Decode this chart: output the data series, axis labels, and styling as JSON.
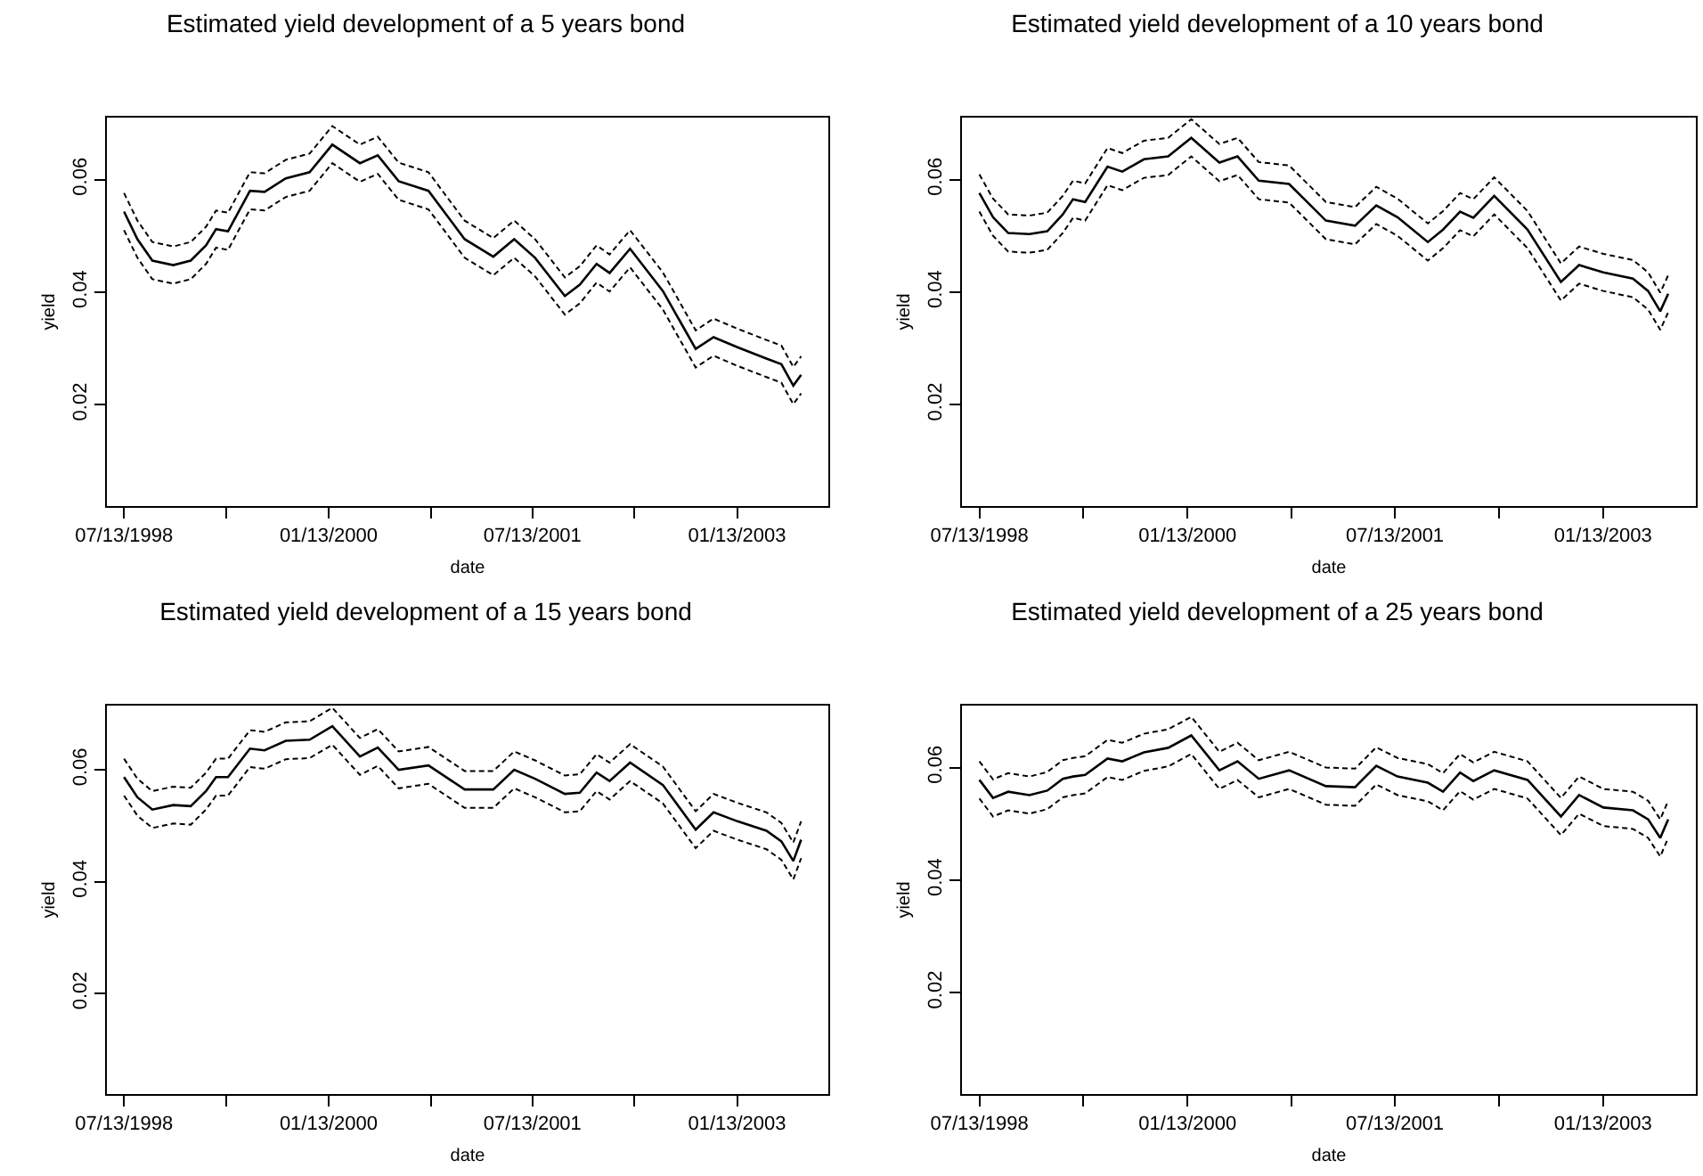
{
  "chart_data": [
    {
      "type": "line",
      "title": "Estimated yield development of a 5 years bond",
      "xlabel": "date",
      "ylabel": "yield",
      "grid": false,
      "marker": "none",
      "x": [
        "1998-07-13",
        "1998-08-18",
        "1998-09-27",
        "1998-11-22",
        "1999-01-08",
        "1999-02-18",
        "1999-03-17",
        "1999-04-18",
        "1999-06-16",
        "1999-07-25",
        "1999-09-20",
        "1999-11-23",
        "2000-01-23",
        "2000-04-06",
        "2000-05-24",
        "2000-07-19",
        "2000-10-07",
        "2001-01-12",
        "2001-03-30",
        "2001-05-25",
        "2001-07-20",
        "2001-10-08",
        "2001-11-17",
        "2002-01-01",
        "2002-02-05",
        "2002-04-01",
        "2002-06-28",
        "2002-09-24",
        "2002-11-11",
        "2003-01-14",
        "2003-04-02",
        "2003-05-12",
        "2003-06-13",
        "2003-07-04"
      ],
      "xlim": [
        "1998-05-28",
        "2003-09-15"
      ],
      "ylim": [
        0.002,
        0.071
      ],
      "yticks": [
        0.02,
        0.04,
        0.06
      ],
      "xticks": [
        {
          "value": "1998-07-13",
          "label": "07/13/1998"
        },
        {
          "value": "1999-04-13",
          "label": null
        },
        {
          "value": "2000-01-13",
          "label": "01/13/2000"
        },
        {
          "value": "2000-10-13",
          "label": null
        },
        {
          "value": "2001-07-13",
          "label": "07/13/2001"
        },
        {
          "value": "2002-04-13",
          "label": null
        },
        {
          "value": "2003-01-13",
          "label": "01/13/2003"
        }
      ],
      "series": [
        {
          "color": "#000000",
          "line_style": "solid",
          "values": [
            0.0543,
            0.0494,
            0.0456,
            0.0448,
            0.0456,
            0.0483,
            0.0512,
            0.0508,
            0.058,
            0.0578,
            0.0602,
            0.0613,
            0.0662,
            0.0629,
            0.0643,
            0.0597,
            0.058,
            0.0494,
            0.0463,
            0.0494,
            0.0461,
            0.0393,
            0.0413,
            0.045,
            0.0434,
            0.0477,
            0.0402,
            0.0299,
            0.032,
            0.0302,
            0.0282,
            0.0272,
            0.0234,
            0.0253
          ]
        },
        {
          "color": "#000000",
          "line_style": "dashed",
          "values": [
            0.0576,
            0.0527,
            0.0489,
            0.0481,
            0.0489,
            0.0516,
            0.0545,
            0.0541,
            0.0613,
            0.0611,
            0.0635,
            0.0646,
            0.0695,
            0.0662,
            0.0676,
            0.063,
            0.0613,
            0.0527,
            0.0496,
            0.0527,
            0.0494,
            0.0426,
            0.0446,
            0.0483,
            0.0467,
            0.051,
            0.0435,
            0.0332,
            0.0353,
            0.0335,
            0.0315,
            0.0305,
            0.0267,
            0.0286
          ]
        },
        {
          "color": "#000000",
          "line_style": "dashed",
          "values": [
            0.051,
            0.0461,
            0.0423,
            0.0415,
            0.0423,
            0.045,
            0.0479,
            0.0475,
            0.0547,
            0.0545,
            0.0569,
            0.058,
            0.0629,
            0.0596,
            0.061,
            0.0564,
            0.0547,
            0.0461,
            0.043,
            0.0461,
            0.0428,
            0.036,
            0.038,
            0.0417,
            0.0401,
            0.0444,
            0.0369,
            0.0266,
            0.0287,
            0.0269,
            0.0249,
            0.0239,
            0.0201,
            0.022
          ]
        }
      ]
    },
    {
      "type": "line",
      "title": "Estimated yield development of a 10 years bond",
      "xlabel": "date",
      "ylabel": "yield",
      "grid": false,
      "marker": "none",
      "x": [
        "1998-07-13",
        "1998-08-18",
        "1998-09-27",
        "1998-11-22",
        "1999-01-08",
        "1999-02-18",
        "1999-03-17",
        "1999-04-18",
        "1999-06-16",
        "1999-07-25",
        "1999-09-20",
        "1999-11-23",
        "2000-01-23",
        "2000-04-06",
        "2000-05-24",
        "2000-07-19",
        "2000-10-07",
        "2001-01-12",
        "2001-03-30",
        "2001-05-25",
        "2001-07-20",
        "2001-10-08",
        "2001-11-17",
        "2002-01-01",
        "2002-02-05",
        "2002-04-01",
        "2002-06-28",
        "2002-09-24",
        "2002-11-11",
        "2003-01-14",
        "2003-04-02",
        "2003-05-12",
        "2003-06-13",
        "2003-07-04"
      ],
      "xlim": [
        "1998-05-28",
        "2003-09-15"
      ],
      "ylim": [
        0.002,
        0.071
      ],
      "yticks": [
        0.02,
        0.04,
        0.06
      ],
      "xticks": [
        {
          "value": "1998-07-13",
          "label": "07/13/1998"
        },
        {
          "value": "1999-04-13",
          "label": null
        },
        {
          "value": "2000-01-13",
          "label": "01/13/2000"
        },
        {
          "value": "2000-10-13",
          "label": null
        },
        {
          "value": "2001-07-13",
          "label": "07/13/2001"
        },
        {
          "value": "2002-04-13",
          "label": null
        },
        {
          "value": "2003-01-13",
          "label": "01/13/2003"
        }
      ],
      "series": [
        {
          "color": "#000000",
          "line_style": "solid",
          "values": [
            0.0576,
            0.0533,
            0.0505,
            0.0503,
            0.0508,
            0.0538,
            0.0565,
            0.056,
            0.0623,
            0.0614,
            0.0636,
            0.0641,
            0.0674,
            0.063,
            0.0641,
            0.0598,
            0.0592,
            0.0527,
            0.0518,
            0.0554,
            0.0533,
            0.0489,
            0.0511,
            0.0543,
            0.0532,
            0.0571,
            0.0511,
            0.0418,
            0.0448,
            0.0435,
            0.0424,
            0.0402,
            0.0366,
            0.0397
          ]
        },
        {
          "color": "#000000",
          "line_style": "dashed",
          "values": [
            0.0609,
            0.0566,
            0.0538,
            0.0536,
            0.0541,
            0.0571,
            0.0598,
            0.0593,
            0.0656,
            0.0647,
            0.0669,
            0.0674,
            0.0707,
            0.0663,
            0.0674,
            0.0631,
            0.0625,
            0.056,
            0.0551,
            0.0587,
            0.0566,
            0.0522,
            0.0544,
            0.0576,
            0.0565,
            0.0604,
            0.0544,
            0.0451,
            0.0481,
            0.0468,
            0.0457,
            0.0435,
            0.0399,
            0.043
          ]
        },
        {
          "color": "#000000",
          "line_style": "dashed",
          "values": [
            0.0543,
            0.05,
            0.0472,
            0.047,
            0.0475,
            0.0505,
            0.0532,
            0.0527,
            0.059,
            0.0581,
            0.0603,
            0.0608,
            0.0641,
            0.0597,
            0.0608,
            0.0565,
            0.0559,
            0.0494,
            0.0485,
            0.0521,
            0.05,
            0.0456,
            0.0478,
            0.051,
            0.0499,
            0.0538,
            0.0478,
            0.0385,
            0.0415,
            0.0402,
            0.0391,
            0.0369,
            0.0333,
            0.0364
          ]
        }
      ]
    },
    {
      "type": "line",
      "title": "Estimated yield development of a 15 years bond",
      "xlabel": "date",
      "ylabel": "yield",
      "grid": false,
      "marker": "none",
      "x": [
        "1998-07-13",
        "1998-08-18",
        "1998-09-27",
        "1998-11-22",
        "1999-01-08",
        "1999-02-18",
        "1999-03-17",
        "1999-04-18",
        "1999-06-16",
        "1999-07-25",
        "1999-09-20",
        "1999-11-23",
        "2000-01-23",
        "2000-04-06",
        "2000-05-24",
        "2000-07-19",
        "2000-10-07",
        "2001-01-12",
        "2001-03-30",
        "2001-05-25",
        "2001-07-20",
        "2001-10-08",
        "2001-11-17",
        "2002-01-01",
        "2002-02-05",
        "2002-04-01",
        "2002-06-28",
        "2002-09-24",
        "2002-11-11",
        "2003-01-14",
        "2003-04-02",
        "2003-05-12",
        "2003-06-13",
        "2003-07-04"
      ],
      "xlim": [
        "1998-05-28",
        "2003-09-15"
      ],
      "ylim": [
        0.002,
        0.0715
      ],
      "yticks": [
        0.02,
        0.04,
        0.06
      ],
      "xticks": [
        {
          "value": "1998-07-13",
          "label": "07/13/1998"
        },
        {
          "value": "1999-04-13",
          "label": null
        },
        {
          "value": "2000-01-13",
          "label": "01/13/2000"
        },
        {
          "value": "2000-10-13",
          "label": null
        },
        {
          "value": "2001-07-13",
          "label": "07/13/2001"
        },
        {
          "value": "2002-04-13",
          "label": null
        },
        {
          "value": "2003-01-13",
          "label": "01/13/2003"
        }
      ],
      "series": [
        {
          "color": "#000000",
          "line_style": "solid",
          "values": [
            0.0587,
            0.0551,
            0.0529,
            0.0537,
            0.0535,
            0.0562,
            0.0587,
            0.0587,
            0.0638,
            0.0635,
            0.0652,
            0.0654,
            0.0678,
            0.0624,
            0.064,
            0.06,
            0.0608,
            0.0565,
            0.0565,
            0.06,
            0.0584,
            0.0557,
            0.0559,
            0.0595,
            0.058,
            0.0613,
            0.0573,
            0.0493,
            0.0524,
            0.0508,
            0.0491,
            0.0472,
            0.0437,
            0.0475
          ]
        },
        {
          "color": "#000000",
          "line_style": "dashed",
          "values": [
            0.062,
            0.0584,
            0.0562,
            0.057,
            0.0568,
            0.0595,
            0.062,
            0.062,
            0.0671,
            0.0668,
            0.0685,
            0.0687,
            0.0711,
            0.0657,
            0.0673,
            0.0633,
            0.0641,
            0.0598,
            0.0598,
            0.0633,
            0.0617,
            0.059,
            0.0592,
            0.0628,
            0.0613,
            0.0646,
            0.0606,
            0.0526,
            0.0557,
            0.0541,
            0.0524,
            0.0505,
            0.047,
            0.0508
          ]
        },
        {
          "color": "#000000",
          "line_style": "dashed",
          "values": [
            0.0554,
            0.0518,
            0.0496,
            0.0504,
            0.0502,
            0.0529,
            0.0554,
            0.0554,
            0.0605,
            0.0602,
            0.0619,
            0.0621,
            0.0645,
            0.0591,
            0.0607,
            0.0567,
            0.0575,
            0.0532,
            0.0532,
            0.0567,
            0.0551,
            0.0524,
            0.0526,
            0.0562,
            0.0547,
            0.058,
            0.054,
            0.046,
            0.0491,
            0.0475,
            0.0458,
            0.0439,
            0.0404,
            0.0442
          ]
        }
      ]
    },
    {
      "type": "line",
      "title": "Estimated yield development of a 25 years bond",
      "xlabel": "date",
      "ylabel": "yield",
      "grid": false,
      "marker": "none",
      "x": [
        "1998-07-13",
        "1998-08-18",
        "1998-09-27",
        "1998-11-22",
        "1999-01-08",
        "1999-02-18",
        "1999-03-17",
        "1999-04-18",
        "1999-06-16",
        "1999-07-25",
        "1999-09-20",
        "1999-11-23",
        "2000-01-23",
        "2000-04-06",
        "2000-05-24",
        "2000-07-19",
        "2000-10-07",
        "2001-01-12",
        "2001-03-30",
        "2001-05-25",
        "2001-07-20",
        "2001-10-08",
        "2001-11-17",
        "2002-01-01",
        "2002-02-05",
        "2002-04-01",
        "2002-06-28",
        "2002-09-24",
        "2002-11-11",
        "2003-01-14",
        "2003-04-02",
        "2003-05-12",
        "2003-06-13",
        "2003-07-04"
      ],
      "xlim": [
        "1998-05-28",
        "2003-09-15"
      ],
      "ylim": [
        0.002,
        0.071
      ],
      "yticks": [
        0.02,
        0.04,
        0.06
      ],
      "xticks": [
        {
          "value": "1998-07-13",
          "label": "07/13/1998"
        },
        {
          "value": "1999-04-13",
          "label": null
        },
        {
          "value": "2000-01-13",
          "label": "01/13/2000"
        },
        {
          "value": "2000-10-13",
          "label": null
        },
        {
          "value": "2001-07-13",
          "label": "07/13/2001"
        },
        {
          "value": "2002-04-13",
          "label": null
        },
        {
          "value": "2003-01-13",
          "label": "01/13/2003"
        }
      ],
      "series": [
        {
          "color": "#000000",
          "line_style": "solid",
          "values": [
            0.0578,
            0.0546,
            0.0557,
            0.0551,
            0.0559,
            0.058,
            0.0584,
            0.0587,
            0.0616,
            0.0611,
            0.0627,
            0.0635,
            0.0657,
            0.0595,
            0.0611,
            0.058,
            0.0595,
            0.0567,
            0.0565,
            0.0603,
            0.0584,
            0.0573,
            0.0557,
            0.0591,
            0.0576,
            0.0595,
            0.0578,
            0.0513,
            0.0551,
            0.0529,
            0.0524,
            0.0508,
            0.0475,
            0.0508
          ]
        },
        {
          "color": "#000000",
          "line_style": "dashed",
          "values": [
            0.0611,
            0.0579,
            0.059,
            0.0584,
            0.0592,
            0.0613,
            0.0617,
            0.062,
            0.0649,
            0.0644,
            0.066,
            0.0668,
            0.069,
            0.0628,
            0.0644,
            0.0613,
            0.0628,
            0.06,
            0.0598,
            0.0636,
            0.0617,
            0.0606,
            0.059,
            0.0624,
            0.0609,
            0.0628,
            0.0611,
            0.0546,
            0.0584,
            0.0562,
            0.0557,
            0.0541,
            0.0508,
            0.0541
          ]
        },
        {
          "color": "#000000",
          "line_style": "dashed",
          "values": [
            0.0545,
            0.0513,
            0.0524,
            0.0518,
            0.0526,
            0.0547,
            0.0551,
            0.0554,
            0.0583,
            0.0578,
            0.0594,
            0.0602,
            0.0624,
            0.0562,
            0.0578,
            0.0547,
            0.0562,
            0.0534,
            0.0532,
            0.057,
            0.0551,
            0.054,
            0.0524,
            0.0558,
            0.0543,
            0.0562,
            0.0545,
            0.048,
            0.0518,
            0.0496,
            0.0491,
            0.0475,
            0.0442,
            0.0475
          ]
        }
      ]
    }
  ]
}
